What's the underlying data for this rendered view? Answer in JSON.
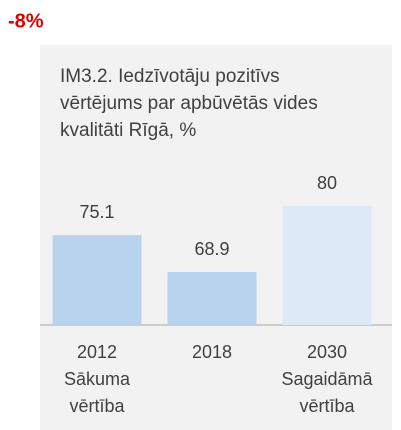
{
  "chart_data": {
    "type": "bar",
    "annotation": "-8%",
    "title": [
      "IM3.2. Iedzīvotāju pozitīvs",
      "vērtējums par apbūvētās vides",
      "kvalitāti Rīgā, %"
    ],
    "categories": [
      [
        "2012",
        "Sākuma",
        "vērtība"
      ],
      [
        "2018"
      ],
      [
        "2030",
        "Sagaidāmā",
        "vērtība"
      ]
    ],
    "values": [
      75.1,
      68.9,
      80
    ],
    "colors": [
      "#b9d3ef",
      "#b9d3ef",
      "#dce9f7"
    ],
    "ylim": [
      60,
      100
    ]
  }
}
